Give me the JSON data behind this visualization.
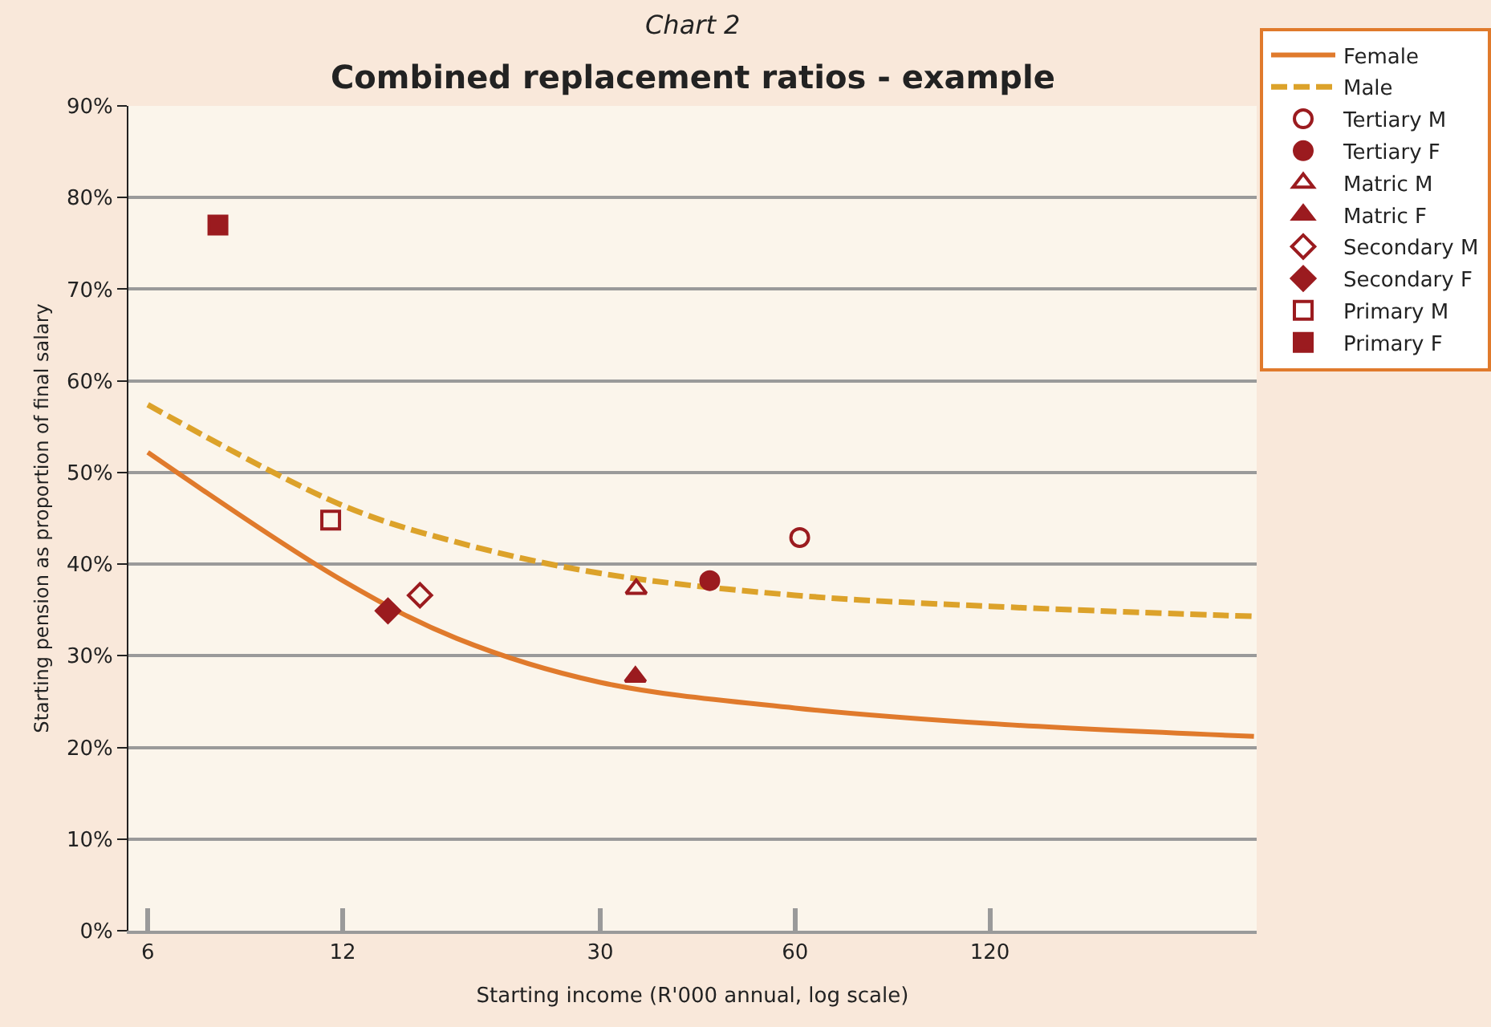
{
  "chart_data": {
    "type": "line",
    "subtitle": "Chart 2",
    "title": "Combined replacement ratios - example",
    "xlabel": "Starting income (R'000 annual, log scale)",
    "ylabel": "Starting pension as proportion of final salary",
    "log": "x",
    "xlim": [
      5.6,
      310
    ],
    "xticks": [
      6,
      12,
      30,
      60,
      120
    ],
    "ylim": [
      0,
      90
    ],
    "yticks": [
      {
        "value": 0,
        "label": "0%"
      },
      {
        "value": 10,
        "label": "10%"
      },
      {
        "value": 20,
        "label": "20%"
      },
      {
        "value": 30,
        "label": "30%"
      },
      {
        "value": 40,
        "label": "40%"
      },
      {
        "value": 50,
        "label": "50%"
      },
      {
        "value": 60,
        "label": "60%"
      },
      {
        "value": 70,
        "label": "70%"
      },
      {
        "value": 80,
        "label": "80%"
      },
      {
        "value": 90,
        "label": "90%"
      }
    ],
    "grid": "y",
    "legend": "top right",
    "series": [
      {
        "name": "Female",
        "color": "#e07a2c",
        "line_style": "solid",
        "marker": "none",
        "x": [
          6,
          12,
          18,
          30,
          60,
          120,
          307
        ],
        "values": [
          52.2,
          38.2,
          31.9,
          27.1,
          24.3,
          22.6,
          21.2
        ]
      },
      {
        "name": "Male",
        "color": "#dca22a",
        "line_style": "dashed",
        "marker": "none",
        "x": [
          6,
          12,
          18,
          30,
          60,
          120,
          307
        ],
        "values": [
          57.4,
          46.4,
          42.4,
          39,
          36.6,
          35.4,
          34.3
        ]
      },
      {
        "name": "Tertiary M",
        "type": "scatter",
        "color": "#9b1b1f",
        "marker": "circle-open",
        "x": [
          61
        ],
        "values": [
          42.9
        ]
      },
      {
        "name": "Tertiary F",
        "type": "scatter",
        "color": "#9b1b1f",
        "marker": "circle",
        "x": [
          44.3
        ],
        "values": [
          38.2
        ]
      },
      {
        "name": "Matric M",
        "type": "scatter",
        "color": "#9b1b1f",
        "marker": "triangle-open",
        "x": [
          34.1
        ],
        "values": [
          37.3
        ]
      },
      {
        "name": "Matric F",
        "type": "scatter",
        "color": "#9b1b1f",
        "marker": "triangle",
        "x": [
          34
        ],
        "values": [
          27.7
        ]
      },
      {
        "name": "Secondary M",
        "type": "scatter",
        "color": "#9b1b1f",
        "marker": "diamond-open",
        "x": [
          15.8
        ],
        "values": [
          36.6
        ]
      },
      {
        "name": "Secondary F",
        "type": "scatter",
        "color": "#9b1b1f",
        "marker": "diamond",
        "x": [
          14.1
        ],
        "values": [
          34.9
        ]
      },
      {
        "name": "Primary M",
        "type": "scatter",
        "color": "#9b1b1f",
        "marker": "square-open",
        "x": [
          11.5
        ],
        "values": [
          44.8
        ]
      },
      {
        "name": "Primary F",
        "type": "scatter",
        "color": "#9b1b1f",
        "marker": "square",
        "x": [
          7.7
        ],
        "values": [
          77
        ]
      }
    ]
  }
}
